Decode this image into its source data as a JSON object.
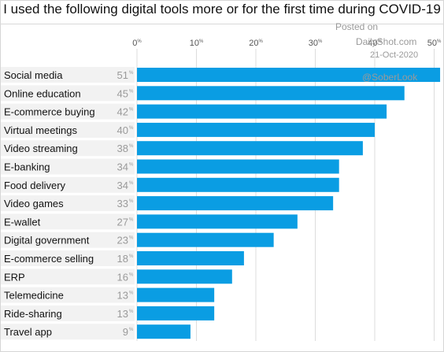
{
  "chart_data": {
    "type": "bar",
    "orientation": "horizontal",
    "title": "I used the following digital tools more or for the first time during COVID-19",
    "categories": [
      "Social media",
      "Online education",
      "E-commerce buying",
      "Virtual meetings",
      "Video streaming",
      "E-banking",
      "Food delivery",
      "Video games",
      "E-wallet",
      "Digital government",
      "E-commerce selling",
      "ERP",
      "Telemedicine",
      "Ride-sharing",
      "Travel app"
    ],
    "values": [
      51,
      45,
      42,
      40,
      38,
      34,
      34,
      33,
      27,
      23,
      18,
      16,
      13,
      13,
      9
    ],
    "value_suffix": "%",
    "ticks": [
      0,
      10,
      20,
      30,
      40,
      50
    ],
    "xlim": [
      0,
      51
    ],
    "grid": true,
    "bar_color": "#0a9de3"
  },
  "watermark": {
    "line1": "Posted on",
    "line2": "DailyShot.com",
    "date": "21-Oct-2020",
    "handle": "@SoberLook"
  }
}
